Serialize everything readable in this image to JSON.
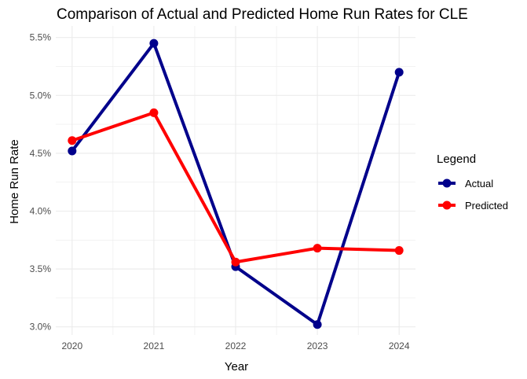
{
  "chart_data": {
    "type": "line",
    "title": "Comparison of Actual and Predicted Home Run Rates for CLE",
    "xlabel": "Year",
    "ylabel": "Home Run Rate",
    "x": [
      2020,
      2021,
      2022,
      2023,
      2024
    ],
    "x_tick_labels": [
      "2020",
      "2021",
      "2022",
      "2023",
      "2024"
    ],
    "y_ticks": [
      3.0,
      3.5,
      4.0,
      4.5,
      5.0,
      5.5
    ],
    "y_tick_labels": [
      "3.0%",
      "3.5%",
      "4.0%",
      "4.5%",
      "5.0%",
      "5.5%"
    ],
    "xlim": [
      2019.8,
      2024.2
    ],
    "ylim": [
      2.93,
      5.6
    ],
    "grid": true,
    "legend": {
      "title": "Legend",
      "position": "right"
    },
    "series": [
      {
        "name": "Actual",
        "color": "#00008b",
        "values": [
          4.52,
          5.45,
          3.52,
          3.02,
          5.2
        ]
      },
      {
        "name": "Predicted",
        "color": "#ff0000",
        "values": [
          4.61,
          4.85,
          3.56,
          3.68,
          3.66
        ]
      }
    ]
  }
}
